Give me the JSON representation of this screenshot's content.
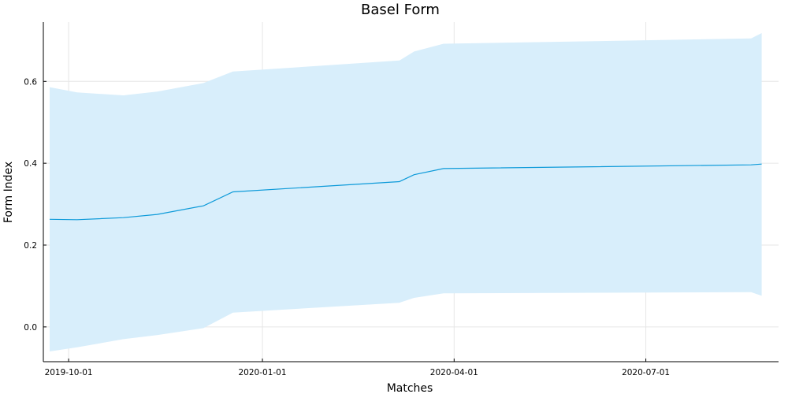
{
  "chart_data": {
    "type": "area",
    "title": "Basel Form",
    "xlabel": "Matches",
    "ylabel": "Form Index",
    "x_ticks": [
      "2019-10-01",
      "2020-01-01",
      "2020-04-01",
      "2020-07-01"
    ],
    "y_ticks": [
      0.0,
      0.2,
      0.4,
      0.6
    ],
    "y_tick_labels": [
      "0.0",
      "0.2",
      "0.4",
      "0.6"
    ],
    "xlim": [
      "2019-09-19",
      "2020-09-02"
    ],
    "ylim": [
      -0.085,
      0.745
    ],
    "grid": true,
    "legend": false,
    "colors": {
      "line": "#0d9ad9",
      "band": "#d8eefb"
    },
    "series": [
      {
        "x": [
          "2019-09-22",
          "2019-10-05",
          "2019-10-27",
          "2019-11-12",
          "2019-12-04",
          "2019-12-18",
          "2020-03-06",
          "2020-03-13",
          "2020-03-27",
          "2020-08-20",
          "2020-08-25"
        ],
        "y": [
          0.263,
          0.262,
          0.267,
          0.275,
          0.296,
          0.33,
          0.355,
          0.372,
          0.387,
          0.396,
          0.398
        ],
        "lower": [
          -0.06,
          -0.05,
          -0.03,
          -0.02,
          -0.003,
          0.035,
          0.059,
          0.071,
          0.082,
          0.085,
          0.076
        ],
        "upper": [
          0.586,
          0.573,
          0.566,
          0.575,
          0.596,
          0.624,
          0.651,
          0.673,
          0.692,
          0.705,
          0.718
        ]
      }
    ]
  }
}
